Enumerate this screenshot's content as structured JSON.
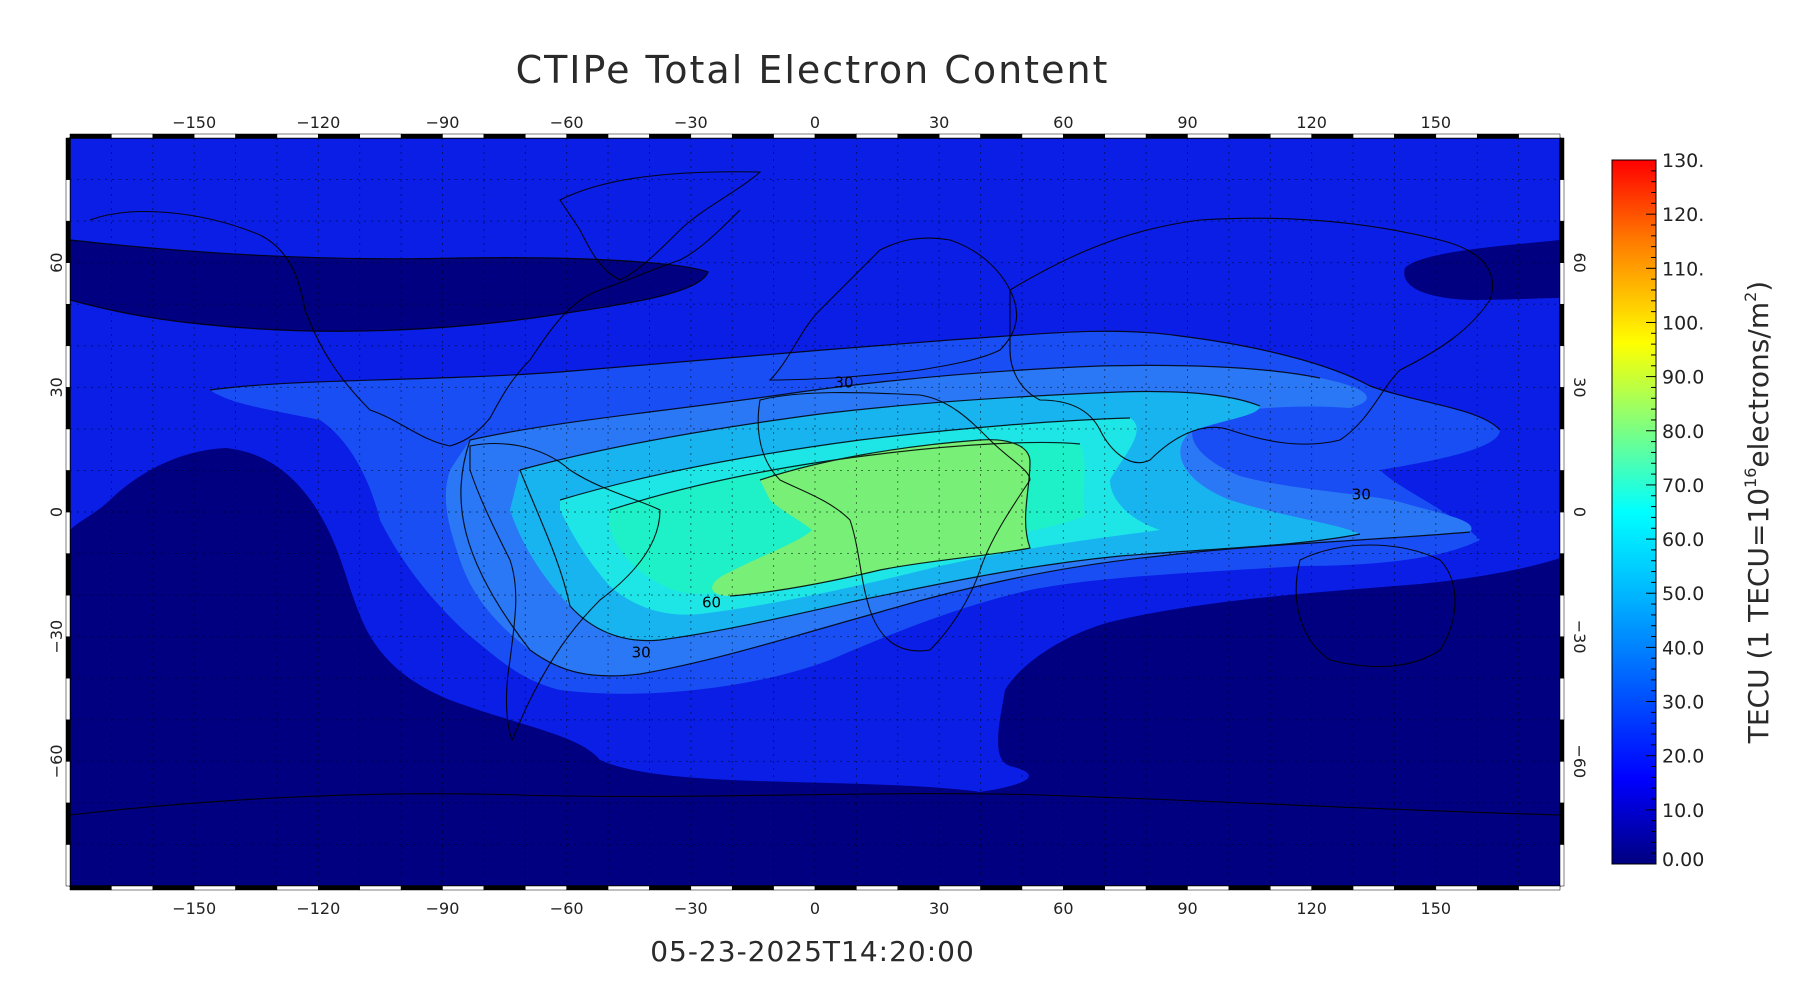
{
  "title": "CTIPe Total Electron Content",
  "timestamp": "05-23-2025T14:20:00",
  "map": {
    "projection": "cylindrical",
    "lon_range": [
      -180,
      180
    ],
    "lat_range": [
      -90,
      90
    ],
    "lon_ticks": [
      -150,
      -120,
      -90,
      -60,
      -30,
      0,
      30,
      60,
      90,
      120,
      150
    ],
    "lat_ticks": [
      60,
      30,
      0,
      -30,
      -60
    ],
    "grid": "dotted, every 10 degrees",
    "contour_labels": [
      {
        "text": "30",
        "lon": 7,
        "lat": 30
      },
      {
        "text": "60",
        "lon": -25,
        "lat": -23
      },
      {
        "text": "30",
        "lon": -42,
        "lat": -35
      },
      {
        "text": "30",
        "lon": 132,
        "lat": 3
      }
    ]
  },
  "colorbar": {
    "title": "TECU (1 TECU=10",
    "title_exp": "16",
    "title_mid": "electrons/m",
    "title_exp2": "2",
    "title_end": ")",
    "labels": [
      "130.",
      "120.",
      "110.",
      "100.",
      "90.0",
      "80.0",
      "70.0",
      "60.0",
      "50.0",
      "40.0",
      "30.0",
      "20.0",
      "10.0",
      "0.00"
    ],
    "range": [
      0,
      130
    ],
    "colors": {
      "min": "#000080",
      "low": "#0000ff",
      "mid": "#00ffff",
      "high": "#ffff00",
      "max": "#ff0000"
    }
  },
  "chart_data": {
    "type": "heatmap",
    "title": "CTIPe Total Electron Content",
    "levels": [
      {
        "value": 0,
        "color": "#000080"
      },
      {
        "value": 10,
        "color": "#0a1ee6"
      },
      {
        "value": 20,
        "color": "#1a4ef5"
      },
      {
        "value": 30,
        "color": "#2a78f5"
      },
      {
        "value": 40,
        "color": "#18b4f0"
      },
      {
        "value": 50,
        "color": "#1ee6e6"
      },
      {
        "value": 60,
        "color": "#1ef0c8"
      },
      {
        "value": 70,
        "color": "#78f078"
      }
    ]
  }
}
